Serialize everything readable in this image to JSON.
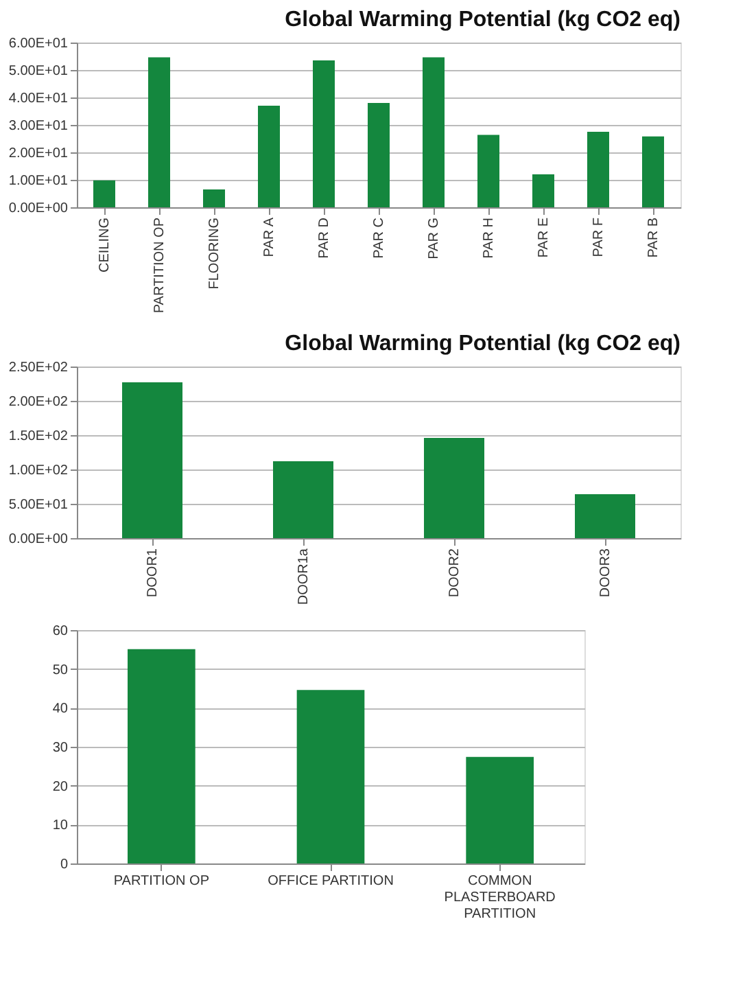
{
  "chart_data": [
    {
      "type": "bar",
      "title": "Global Warming Potential (kg CO2 eq)",
      "categories": [
        "CEILING",
        "PARTITION OP",
        "FLOORING",
        "PAR A",
        "PAR D",
        "PAR C",
        "PAR G",
        "PAR H",
        "PAR E",
        "PAR F",
        "PAR B"
      ],
      "values": [
        9.8,
        54.6,
        6.5,
        37.0,
        53.5,
        38.0,
        54.6,
        26.4,
        12.0,
        27.5,
        25.8
      ],
      "color": "#14873e",
      "ylim": [
        0,
        60
      ],
      "yticks": [
        {
          "value": 0,
          "label": "0.00E+00"
        },
        {
          "value": 10,
          "label": "1.00E+01"
        },
        {
          "value": 20,
          "label": "2.00E+01"
        },
        {
          "value": 30,
          "label": "3.00E+01"
        },
        {
          "value": 40,
          "label": "4.00E+01"
        },
        {
          "value": 50,
          "label": "5.00E+01"
        },
        {
          "value": 60,
          "label": "6.00E+01"
        }
      ],
      "grid": "y"
    },
    {
      "type": "bar",
      "title": "Global Warming Potential (kg CO2 eq)",
      "categories": [
        "DOOR1",
        "DOOR1a",
        "DOOR2",
        "DOOR3"
      ],
      "values": [
        227,
        112,
        146,
        64
      ],
      "color": "#14873e",
      "ylim": [
        0,
        250
      ],
      "yticks": [
        {
          "value": 0,
          "label": "0.00E+00"
        },
        {
          "value": 50,
          "label": "5.00E+01"
        },
        {
          "value": 100,
          "label": "1.00E+02"
        },
        {
          "value": 150,
          "label": "1.50E+02"
        },
        {
          "value": 200,
          "label": "2.00E+02"
        },
        {
          "value": 250,
          "label": "2.50E+02"
        }
      ],
      "grid": "y"
    },
    {
      "type": "bar",
      "categories": [
        "PARTITION OP",
        "OFFICE PARTITION",
        "COMMON PLASTERBOARD PARTITION"
      ],
      "values": [
        55.1,
        44.6,
        27.4
      ],
      "color": "#14873e",
      "ylim": [
        0,
        60
      ],
      "yticks": [
        0,
        10,
        20,
        30,
        40,
        50,
        60
      ],
      "grid": "y"
    }
  ]
}
